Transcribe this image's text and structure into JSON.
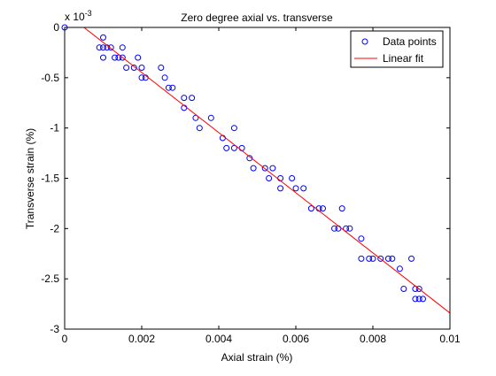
{
  "chart_data": {
    "type": "scatter",
    "title": "Zero degree axial vs. transverse",
    "xlabel": "Axial strain (%)",
    "ylabel": "Transverse strain (%)",
    "y_exponent_label": "x 10",
    "y_exponent_power": "-3",
    "xlim": [
      0,
      0.01
    ],
    "ylim": [
      -3,
      0
    ],
    "x_ticks": [
      0,
      0.002,
      0.004,
      0.006,
      0.008,
      0.01
    ],
    "x_tick_labels": [
      "0",
      "0.002",
      "0.004",
      "0.006",
      "0.008",
      "0.01"
    ],
    "y_ticks": [
      0,
      -0.5,
      -1,
      -1.5,
      -2,
      -2.5,
      -3
    ],
    "y_tick_labels": [
      "0",
      "-0.5",
      "-1",
      "-1.5",
      "-2",
      "-2.5",
      "-3"
    ],
    "grid": false,
    "legend_position": "top-right",
    "series": [
      {
        "name": "Data points",
        "style": "marker-circle",
        "color": "#0000ff",
        "points": [
          [
            0.0,
            0.0
          ],
          [
            0.0009,
            -0.2
          ],
          [
            0.001,
            -0.1
          ],
          [
            0.001,
            -0.2
          ],
          [
            0.001,
            -0.3
          ],
          [
            0.0011,
            -0.2
          ],
          [
            0.0012,
            -0.2
          ],
          [
            0.0013,
            -0.3
          ],
          [
            0.0014,
            -0.3
          ],
          [
            0.0015,
            -0.2
          ],
          [
            0.0015,
            -0.3
          ],
          [
            0.0016,
            -0.4
          ],
          [
            0.0018,
            -0.4
          ],
          [
            0.0019,
            -0.3
          ],
          [
            0.002,
            -0.4
          ],
          [
            0.002,
            -0.5
          ],
          [
            0.0021,
            -0.5
          ],
          [
            0.0025,
            -0.4
          ],
          [
            0.0026,
            -0.5
          ],
          [
            0.0027,
            -0.6
          ],
          [
            0.0028,
            -0.6
          ],
          [
            0.0031,
            -0.7
          ],
          [
            0.0031,
            -0.8
          ],
          [
            0.0033,
            -0.7
          ],
          [
            0.0034,
            -0.9
          ],
          [
            0.0035,
            -1.0
          ],
          [
            0.0038,
            -0.9
          ],
          [
            0.0041,
            -1.1
          ],
          [
            0.0042,
            -1.2
          ],
          [
            0.0044,
            -1.0
          ],
          [
            0.0044,
            -1.2
          ],
          [
            0.0046,
            -1.2
          ],
          [
            0.0048,
            -1.3
          ],
          [
            0.0049,
            -1.4
          ],
          [
            0.0052,
            -1.4
          ],
          [
            0.0053,
            -1.5
          ],
          [
            0.0054,
            -1.4
          ],
          [
            0.0056,
            -1.5
          ],
          [
            0.0056,
            -1.6
          ],
          [
            0.0059,
            -1.5
          ],
          [
            0.006,
            -1.6
          ],
          [
            0.0062,
            -1.6
          ],
          [
            0.0064,
            -1.8
          ],
          [
            0.0066,
            -1.8
          ],
          [
            0.0067,
            -1.8
          ],
          [
            0.007,
            -2.0
          ],
          [
            0.0071,
            -2.0
          ],
          [
            0.0072,
            -1.8
          ],
          [
            0.0073,
            -2.0
          ],
          [
            0.0074,
            -2.0
          ],
          [
            0.0077,
            -2.1
          ],
          [
            0.0077,
            -2.3
          ],
          [
            0.0079,
            -2.3
          ],
          [
            0.008,
            -2.3
          ],
          [
            0.0082,
            -2.3
          ],
          [
            0.0084,
            -2.3
          ],
          [
            0.0085,
            -2.3
          ],
          [
            0.0087,
            -2.4
          ],
          [
            0.0088,
            -2.6
          ],
          [
            0.009,
            -2.3
          ],
          [
            0.0091,
            -2.6
          ],
          [
            0.0091,
            -2.7
          ],
          [
            0.0092,
            -2.6
          ],
          [
            0.0092,
            -2.7
          ],
          [
            0.0093,
            -2.7
          ]
        ]
      },
      {
        "name": "Linear fit",
        "style": "line",
        "color": "#ff0000",
        "points": [
          [
            0.0005,
            0.0
          ],
          [
            0.01,
            -2.84
          ]
        ]
      }
    ]
  }
}
